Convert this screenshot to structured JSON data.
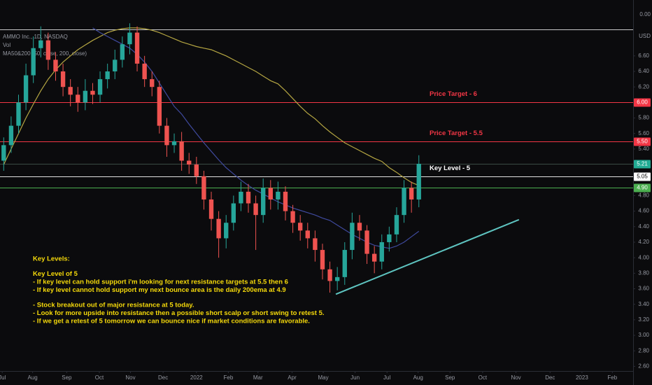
{
  "chart_data": {
    "type": "candlestick",
    "legend": [
      "AMMO Inc., 1D, NASDAQ",
      "Vol",
      "MA50&200 (50, close, 200, close)"
    ],
    "axis_header": "0.00",
    "currency": "USD",
    "xlim": [
      0,
      85.4
    ],
    "xticks": [
      {
        "value": 0.3,
        "label": "Jul"
      },
      {
        "value": 4.4,
        "label": "Aug"
      },
      {
        "value": 9,
        "label": "Sep"
      },
      {
        "value": 13.4,
        "label": "Oct"
      },
      {
        "value": 17.6,
        "label": "Nov"
      },
      {
        "value": 22,
        "label": "Dec"
      },
      {
        "value": 26.5,
        "label": "2022"
      },
      {
        "value": 30.8,
        "label": "Feb"
      },
      {
        "value": 34.8,
        "label": "Mar"
      },
      {
        "value": 39.4,
        "label": "Apr"
      },
      {
        "value": 43.6,
        "label": "May"
      },
      {
        "value": 47.9,
        "label": "Jun"
      },
      {
        "value": 52.2,
        "label": "Jul"
      },
      {
        "value": 56.4,
        "label": "Aug"
      },
      {
        "value": 60.7,
        "label": "Sep"
      },
      {
        "value": 65.1,
        "label": "Oct"
      },
      {
        "value": 69.6,
        "label": "Nov"
      },
      {
        "value": 74.2,
        "label": "Dec"
      },
      {
        "value": 78.5,
        "label": "2023"
      },
      {
        "value": 82.6,
        "label": "Feb"
      }
    ],
    "ylim": [
      2.36,
      7.32
    ],
    "yticks": [
      {
        "value": 6.6,
        "label": "6.60"
      },
      {
        "value": 6.4,
        "label": "6.40"
      },
      {
        "value": 6.2,
        "label": "6.20"
      },
      {
        "value": 5.8,
        "label": "5.80"
      },
      {
        "value": 5.6,
        "label": "5.60"
      },
      {
        "value": 5.4,
        "label": "5.40"
      },
      {
        "value": 4.8,
        "label": "4.80"
      },
      {
        "value": 4.6,
        "label": "4.60"
      },
      {
        "value": 4.4,
        "label": "4.40"
      },
      {
        "value": 4.2,
        "label": "4.20"
      },
      {
        "value": 4,
        "label": "4.00"
      },
      {
        "value": 3.8,
        "label": "3.80"
      },
      {
        "value": 3.6,
        "label": "3.60"
      },
      {
        "value": 3.4,
        "label": "3.40"
      },
      {
        "value": 3.2,
        "label": "3.20"
      },
      {
        "value": 3,
        "label": "3.00"
      },
      {
        "value": 2.8,
        "label": "2.80"
      },
      {
        "value": 2.6,
        "label": "2.60"
      }
    ],
    "grid": false,
    "up_color": "#26a69a",
    "down_color": "#ef5350",
    "open": [
      5.25,
      5.45,
      5.7,
      6.0,
      6.35,
      6.7,
      6.8,
      6.55,
      6.4,
      6.2,
      6.1,
      6.0,
      6.15,
      6.1,
      6.3,
      6.4,
      6.55,
      6.75,
      6.9,
      6.5,
      6.3,
      6.2,
      5.7,
      5.45,
      5.5,
      5.25,
      5.2,
      5.05,
      4.75,
      4.5,
      4.25,
      4.45,
      4.7,
      4.85,
      4.7,
      4.55,
      4.9,
      4.75,
      4.85,
      4.6,
      4.45,
      4.35,
      4.25,
      4.1,
      3.85,
      3.7,
      3.75,
      4.1,
      4.45,
      4.35,
      4.05,
      3.95,
      4.2,
      4.3,
      4.55,
      4.9,
      4.75
    ],
    "high": [
      5.55,
      5.82,
      6.1,
      6.5,
      6.85,
      6.98,
      6.9,
      6.65,
      6.5,
      6.3,
      6.2,
      6.3,
      6.25,
      6.4,
      6.5,
      6.68,
      6.85,
      7.02,
      6.98,
      6.6,
      6.4,
      6.28,
      5.8,
      5.6,
      5.62,
      5.35,
      5.3,
      5.12,
      4.85,
      4.6,
      4.55,
      4.8,
      4.98,
      4.95,
      4.8,
      5.02,
      5.0,
      4.98,
      4.92,
      4.68,
      4.55,
      4.45,
      4.35,
      4.18,
      3.95,
      3.88,
      4.2,
      4.58,
      4.55,
      4.42,
      4.15,
      4.3,
      4.4,
      4.65,
      5.0,
      4.98,
      5.32
    ],
    "low": [
      5.12,
      5.35,
      5.6,
      5.9,
      6.25,
      6.58,
      6.42,
      6.28,
      6.08,
      5.95,
      5.88,
      5.9,
      5.98,
      6.0,
      6.18,
      6.3,
      6.45,
      6.62,
      6.4,
      6.2,
      6.08,
      5.6,
      5.3,
      5.35,
      5.12,
      5.08,
      4.95,
      4.62,
      4.35,
      4.0,
      4.12,
      4.35,
      4.6,
      4.58,
      4.1,
      4.45,
      4.62,
      4.62,
      4.48,
      4.32,
      4.22,
      4.12,
      3.95,
      3.72,
      3.55,
      3.58,
      3.65,
      3.98,
      4.22,
      3.92,
      3.8,
      3.85,
      4.08,
      4.2,
      4.45,
      4.58,
      4.65
    ],
    "close": [
      5.45,
      5.7,
      6.0,
      6.35,
      6.7,
      6.8,
      6.55,
      6.4,
      6.2,
      6.1,
      6.0,
      6.15,
      6.1,
      6.3,
      6.4,
      6.55,
      6.75,
      6.9,
      6.5,
      6.3,
      6.2,
      5.7,
      5.45,
      5.5,
      5.25,
      5.2,
      5.05,
      4.75,
      4.5,
      4.25,
      4.45,
      4.7,
      4.85,
      4.7,
      4.55,
      4.9,
      4.75,
      4.85,
      4.6,
      4.45,
      4.35,
      4.25,
      4.1,
      3.85,
      3.7,
      3.75,
      4.1,
      4.45,
      4.35,
      4.05,
      3.95,
      4.2,
      4.3,
      4.55,
      4.9,
      4.75,
      5.21
    ],
    "ma": [
      {
        "color": "#b5a642",
        "values": [
          5.2,
          5.4,
          5.6,
          5.8,
          5.98,
          6.15,
          6.3,
          6.42,
          6.52,
          6.6,
          6.68,
          6.74,
          6.8,
          6.85,
          6.9,
          6.93,
          6.95,
          6.96,
          6.96,
          6.95,
          6.93,
          6.9,
          6.86,
          6.82,
          6.78,
          6.75,
          6.72,
          6.7,
          6.68,
          6.64,
          6.6,
          6.55,
          6.5,
          6.45,
          6.4,
          6.34,
          6.28,
          6.24,
          6.15,
          6.05,
          5.95,
          5.86,
          5.79,
          5.7,
          5.62,
          5.55,
          5.48,
          5.43,
          5.38,
          5.33,
          5.28,
          5.24,
          5.16,
          5.1,
          5.03,
          4.97,
          4.93
        ]
      },
      {
        "color": "#3f4a9e",
        "values": [
          null,
          null,
          null,
          null,
          null,
          null,
          null,
          null,
          null,
          null,
          null,
          null,
          6.96,
          6.9,
          6.85,
          6.8,
          6.75,
          6.7,
          6.62,
          6.52,
          6.4,
          6.25,
          6.1,
          5.95,
          5.85,
          5.72,
          5.6,
          5.48,
          5.37,
          5.26,
          5.16,
          5.08,
          5.0,
          4.93,
          4.87,
          4.82,
          4.77,
          4.72,
          4.68,
          4.64,
          4.61,
          4.58,
          4.55,
          4.51,
          4.48,
          4.42,
          4.36,
          4.3,
          4.25,
          4.2,
          4.16,
          4.14,
          4.12,
          4.15,
          4.2,
          4.27,
          4.34
        ]
      }
    ],
    "levels": [
      {
        "value": 6.94,
        "line_color": "#c8c8c8"
      },
      {
        "value": 6,
        "badge": "6.00",
        "label": "Price Target - 6",
        "line_color": "#f23645",
        "color": "#f23645"
      },
      {
        "value": 5.5,
        "badge": "5.50",
        "label": "Price Target - 5.5",
        "line_color": "#f23645",
        "color": "#f23645"
      },
      {
        "value": 5.21,
        "badge": "5.21",
        "line_color": "#3a4a44",
        "color": "#22ab94"
      },
      {
        "value": 5.05,
        "badge": "5.05",
        "label": "Key Level - 5",
        "line_color": "#e0e0e0",
        "color": "#ffffff"
      },
      {
        "value": 4.9,
        "badge": "4.90",
        "line_color": "#4caf50",
        "color": "#4caf50"
      }
    ],
    "trendline": {
      "x": [
        45.3,
        70
      ],
      "y": [
        3.53,
        4.49
      ],
      "color": "#5ec4c0"
    },
    "notes": [
      [
        "Key Levels:"
      ],
      [
        "Key Level of 5",
        "- If key level can hold support i'm looking for next resistance targets at 5.5 then 6",
        "- If key level cannot hold support my next bounce area is the daily 200ema at 4.9"
      ],
      [
        "- Stock breakout out of major resistance at 5 today.",
        "- Look for more upside into resistance then a possible short scalp or short swing to retest 5.",
        "- If we get a retest of 5 tomorrow we can bounce nice if market conditions are favorable."
      ]
    ],
    "notes_color": "#f5d90a"
  }
}
